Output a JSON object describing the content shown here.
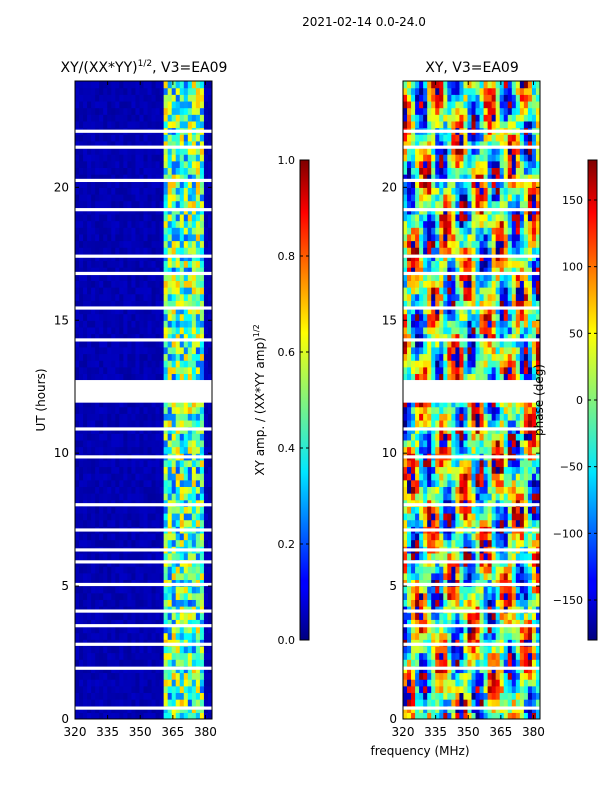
{
  "figure": {
    "suptitle": "2021-02-14 0.0-24.0",
    "xlabel": "frequency (MHz)"
  },
  "chart_data": [
    {
      "type": "heatmap",
      "title_main": "XY/(XX*YY)",
      "title_sup": "1/2",
      "title_rest": ", V3=EA09",
      "ylabel": "UT (hours)",
      "xlim": [
        320,
        383
      ],
      "ylim": [
        0,
        24
      ],
      "xticks": [
        320,
        335,
        350,
        365,
        380
      ],
      "yticks": [
        0,
        5,
        10,
        15,
        20
      ],
      "colorbar": {
        "label": "XY amp. / (XX*YY amp)",
        "label_sup": "1/2",
        "range": [
          0.0,
          1.0
        ],
        "ticks": [
          "0.0",
          "0.2",
          "0.4",
          "0.6",
          "0.8",
          "1.0"
        ],
        "tick_values": [
          0.0,
          0.2,
          0.4,
          0.6,
          0.8,
          1.0
        ]
      },
      "signal_band_mhz": [
        361,
        380
      ],
      "gap_hours": [
        [
          11.95,
          12.75
        ]
      ]
    },
    {
      "type": "heatmap",
      "title": "XY, V3=EA09",
      "xlim": [
        320,
        383
      ],
      "ylim": [
        0,
        24
      ],
      "xticks": [
        320,
        335,
        350,
        365,
        380
      ],
      "yticks": [
        0,
        5,
        10,
        15,
        20
      ],
      "colorbar": {
        "label": "phase (deg)",
        "range": [
          -180,
          180
        ],
        "ticks": [
          "150",
          "100",
          "50",
          "0",
          "−50",
          "−100",
          "−150"
        ],
        "tick_values": [
          150,
          100,
          50,
          0,
          -50,
          -100,
          -150
        ]
      },
      "gap_hours": [
        [
          11.95,
          12.75
        ]
      ]
    }
  ]
}
